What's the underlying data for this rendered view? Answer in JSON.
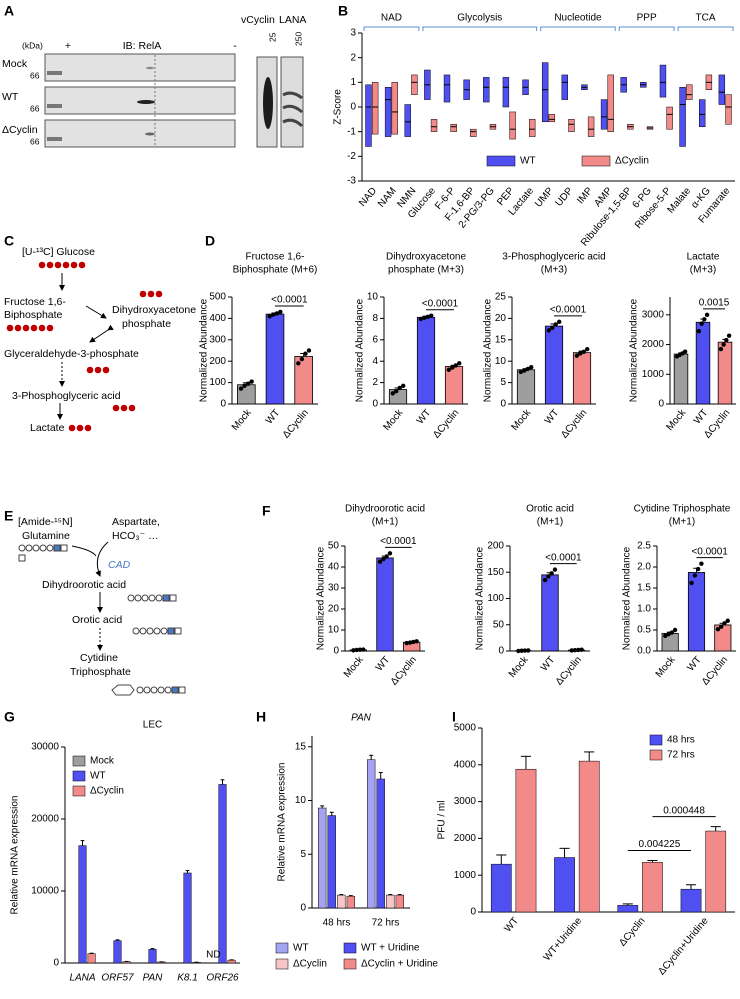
{
  "panel_labels": [
    "A",
    "B",
    "C",
    "D",
    "E",
    "F",
    "G",
    "H",
    "I"
  ],
  "blot": {
    "kda": "(kDa)",
    "plus": "+",
    "antibody": "IB: RelA",
    "minus": "-",
    "rows": [
      "Mock",
      "WT",
      "ΔCyclin"
    ],
    "marker": "66",
    "columns": [
      "vCyclin",
      "LANA"
    ],
    "column_markers": [
      "25",
      "250"
    ]
  },
  "diagram_c": {
    "start": "[U-¹³C] Glucose",
    "fbp": [
      "Fructose 1,6-",
      "Biphosphate"
    ],
    "dhap": [
      "Dihydroxyacetone",
      "phosphate"
    ],
    "g3p": "Glyceraldehyde-3-phosphate",
    "pga": "3-Phosphoglyceric acid",
    "lactate": "Lactate"
  },
  "diagram_e": {
    "start": [
      "[Amide-¹⁵N]",
      "Glutamine"
    ],
    "cosubstrates": [
      "Aspartate,",
      "HCO₃⁻ …"
    ],
    "enzyme": "CAD",
    "dho": "Dihydroorotic acid",
    "orotic": "Orotic acid",
    "ctp": [
      "Cytidine",
      "Triphosphate"
    ]
  },
  "chart_data": [
    {
      "type": "box",
      "ylabel": "Z-Score",
      "groups": [
        {
          "name": "NAD",
          "span": [
            0,
            2
          ]
        },
        {
          "name": "Glycolysis",
          "span": [
            3,
            8
          ]
        },
        {
          "name": "Nucleotide",
          "span": [
            9,
            12
          ]
        },
        {
          "name": "PPP",
          "span": [
            13,
            15
          ]
        },
        {
          "name": "TCA",
          "span": [
            16,
            18
          ]
        }
      ],
      "categories": [
        "NAD",
        "NAM",
        "NMN",
        "Glucose",
        "F-6-P",
        "F-1,6-BP",
        "2-PG/3-PG",
        "PEP",
        "Lactate",
        "UMP",
        "UDP",
        "IMP",
        "AMP",
        "Ribulose-1,5-BP",
        "6-PG",
        "Ribose-5-P",
        "Malate",
        "α-KG",
        "Fumarate"
      ],
      "series": [
        {
          "name": "WT",
          "color": "#5050f2",
          "min": [
            -1.6,
            -1.2,
            -1.2,
            0.3,
            0.2,
            0.3,
            0.2,
            0.0,
            0.5,
            -0.6,
            0.3,
            0.7,
            -0.9,
            0.6,
            0.8,
            0.4,
            -1.6,
            -0.8,
            0.1
          ],
          "median": [
            0.0,
            0.3,
            -0.6,
            0.9,
            0.9,
            0.7,
            0.8,
            0.8,
            0.8,
            0.7,
            1.0,
            0.8,
            -0.4,
            0.9,
            0.9,
            1.0,
            0.1,
            -0.3,
            0.6
          ],
          "max": [
            0.9,
            0.8,
            0.1,
            1.5,
            1.3,
            1.1,
            1.2,
            1.2,
            1.1,
            1.8,
            1.3,
            0.9,
            0.3,
            1.2,
            1.0,
            1.7,
            0.8,
            0.3,
            1.3
          ]
        },
        {
          "name": "ΔCyclin",
          "color": "#f38a8a",
          "min": [
            -1.1,
            -1.1,
            0.5,
            -1.0,
            -1.0,
            -1.2,
            -0.9,
            -1.3,
            -1.2,
            -0.6,
            -1.0,
            -1.2,
            -1.0,
            -0.9,
            -0.9,
            -0.9,
            0.3,
            0.7,
            -0.7
          ],
          "median": [
            0.0,
            -0.2,
            1.0,
            -0.8,
            -0.8,
            -1.0,
            -0.8,
            -0.9,
            -0.9,
            -0.5,
            -0.7,
            -0.9,
            -0.5,
            -0.8,
            -0.85,
            -0.3,
            0.5,
            1.0,
            0.0
          ],
          "max": [
            1.0,
            1.0,
            1.3,
            -0.5,
            -0.7,
            -0.9,
            -0.7,
            -0.2,
            -0.5,
            -0.3,
            -0.5,
            -0.4,
            1.3,
            -0.7,
            -0.8,
            0.0,
            0.9,
            1.3,
            0.5
          ]
        }
      ],
      "ylim": [
        -3,
        3
      ],
      "yticks": [
        -3,
        -2,
        -1,
        0,
        1,
        2,
        3
      ],
      "legend": "bottom"
    },
    {
      "type": "bar",
      "title": [
        "Fructose 1,6-",
        "Biphosphate (M+6)"
      ],
      "ylabel": "Normalized Abundance",
      "categories": [
        "Mock",
        "WT",
        "ΔCyclin"
      ],
      "colors": [
        "#9e9e9e",
        "#5050f2",
        "#f38a8a"
      ],
      "values": [
        90,
        420,
        222
      ],
      "errors": [
        9,
        5,
        14
      ],
      "points": [
        [
          72,
          85,
          95,
          105
        ],
        [
          410,
          418,
          423,
          430
        ],
        [
          190,
          210,
          235,
          250
        ]
      ],
      "ylim": [
        0,
        500
      ],
      "yticks": [
        0,
        100,
        200,
        300,
        400,
        500
      ],
      "annotations": [
        {
          "text": "<0.0001",
          "from": 1,
          "to": 2
        }
      ]
    },
    {
      "type": "bar",
      "title": [
        "Dihydroxyacetone",
        "phosphate (M+3)"
      ],
      "ylabel": "Normalized Abundance",
      "categories": [
        "Mock",
        "WT",
        "ΔCyclin"
      ],
      "colors": [
        "#9e9e9e",
        "#5050f2",
        "#f38a8a"
      ],
      "values": [
        1.35,
        8.1,
        3.5
      ],
      "errors": [
        0.15,
        0.1,
        0.12
      ],
      "points": [
        [
          1.0,
          1.2,
          1.5,
          1.7
        ],
        [
          7.95,
          8.05,
          8.15,
          8.25
        ],
        [
          3.2,
          3.4,
          3.6,
          3.8
        ]
      ],
      "ylim": [
        0,
        10
      ],
      "yticks": [
        0,
        2,
        4,
        6,
        8,
        10
      ],
      "annotations": [
        {
          "text": "<0.0001",
          "from": 1,
          "to": 2
        }
      ]
    },
    {
      "type": "bar",
      "title": [
        "3-Phosphoglyceric acid",
        "(M+3)"
      ],
      "ylabel": "Normalized Abundance",
      "categories": [
        "Mock",
        "WT",
        "ΔCyclin"
      ],
      "colors": [
        "#9e9e9e",
        "#5050f2",
        "#f38a8a"
      ],
      "values": [
        8.0,
        18.2,
        12.0
      ],
      "errors": [
        0.25,
        0.5,
        0.35
      ],
      "points": [
        [
          7.5,
          7.8,
          8.2,
          8.6
        ],
        [
          17.2,
          17.8,
          18.6,
          19.2
        ],
        [
          11.3,
          11.8,
          12.2,
          12.8
        ]
      ],
      "ylim": [
        0,
        25
      ],
      "yticks": [
        0,
        5,
        10,
        15,
        20,
        25
      ],
      "annotations": [
        {
          "text": "<0.0001",
          "from": 1,
          "to": 2
        }
      ]
    },
    {
      "type": "bar",
      "title": [
        "Lactate",
        "(M+3)"
      ],
      "ylabel": "Normalized Abundance",
      "categories": [
        "Mock",
        "WT",
        "ΔCyclin"
      ],
      "colors": [
        "#9e9e9e",
        "#5050f2",
        "#f38a8a"
      ],
      "values": [
        1680,
        2750,
        2080
      ],
      "errors": [
        40,
        110,
        95
      ],
      "points": [
        [
          1600,
          1650,
          1700,
          1760
        ],
        [
          2450,
          2700,
          2850,
          3000
        ],
        [
          1850,
          2000,
          2150,
          2300
        ]
      ],
      "ylim": [
        0,
        3600
      ],
      "yticks": [
        0,
        1000,
        2000,
        3000
      ],
      "annotations": [
        {
          "text": "0.0015",
          "from": 1,
          "to": 2
        }
      ]
    },
    {
      "type": "bar",
      "title": [
        "Dihydroorotic acid",
        "(M+1)"
      ],
      "ylabel": "Normalized Abundance",
      "categories": [
        "Mock",
        "WT",
        "ΔCyclin"
      ],
      "colors": [
        "#9e9e9e",
        "#5050f2",
        "#f38a8a"
      ],
      "values": [
        0.5,
        44.3,
        4.2
      ],
      "errors": [
        0.1,
        0.9,
        0.2
      ],
      "points": [
        [
          0.3,
          0.5,
          0.6,
          0.7
        ],
        [
          42.5,
          43.8,
          45,
          46.5
        ],
        [
          3.8,
          4.0,
          4.3,
          4.6
        ]
      ],
      "ylim": [
        0,
        50
      ],
      "yticks": [
        0,
        10,
        20,
        30,
        40,
        50
      ],
      "annotations": [
        {
          "text": "<0.0001",
          "from": 1,
          "to": 2
        }
      ]
    },
    {
      "type": "bar",
      "title": [
        "Orotic acid",
        "(M+1)"
      ],
      "ylabel": "Normalized Abundance",
      "categories": [
        "Mock",
        "WT",
        "ΔCyclin"
      ],
      "colors": [
        "#9e9e9e",
        "#5050f2",
        "#f38a8a"
      ],
      "values": [
        0.5,
        145,
        1.5
      ],
      "errors": [
        0.2,
        4,
        0.3
      ],
      "points": [
        [
          0,
          0.5,
          0.8,
          1
        ],
        [
          135,
          142,
          148,
          155
        ],
        [
          1,
          1.5,
          2,
          2.5
        ]
      ],
      "ylim": [
        0,
        200
      ],
      "yticks": [
        0,
        50,
        100,
        150,
        200
      ],
      "annotations": [
        {
          "text": "<0.0001",
          "from": 1,
          "to": 2
        }
      ]
    },
    {
      "type": "bar",
      "title": [
        "Cytidine Triphosphate",
        "(M+1)"
      ],
      "ylabel": "Normalized Abundance",
      "categories": [
        "Mock",
        "WT",
        "ΔCyclin"
      ],
      "colors": [
        "#9e9e9e",
        "#5050f2",
        "#f38a8a"
      ],
      "values": [
        0.42,
        1.87,
        0.62
      ],
      "errors": [
        0.03,
        0.1,
        0.04
      ],
      "points": [
        [
          0.36,
          0.4,
          0.44,
          0.5
        ],
        [
          1.62,
          1.8,
          1.95,
          2.08
        ],
        [
          0.52,
          0.58,
          0.66,
          0.72
        ]
      ],
      "ylim": [
        0,
        2.5
      ],
      "yticks": [
        {
          "value": 0,
          "label": "0.0"
        },
        {
          "value": 0.5,
          "label": "0.5"
        },
        {
          "value": 1,
          "label": "1.0"
        },
        {
          "value": 1.5,
          "label": "1.5"
        },
        {
          "value": 2,
          "label": "2.0"
        },
        {
          "value": 2.5,
          "label": "2.5"
        }
      ],
      "annotations": [
        {
          "text": "<0.0001",
          "from": 1,
          "to": 2
        }
      ]
    },
    {
      "type": "grouped-bar",
      "title": [
        "LEC"
      ],
      "ylabel": "Relative mRNA expression",
      "category_style": "italic",
      "categories": [
        "LANA",
        "ORF57",
        "PAN",
        "K8.1",
        "ORF26"
      ],
      "series": [
        {
          "name": "Mock",
          "color": "#9e9e9e",
          "values": [
            1,
            1,
            1,
            1,
            null
          ],
          "errors": [
            0,
            0,
            0,
            0,
            null
          ]
        },
        {
          "name": "WT",
          "color": "#5050f2",
          "values": [
            16300,
            3100,
            1900,
            12500,
            24800
          ],
          "errors": [
            700,
            120,
            100,
            350,
            650
          ]
        },
        {
          "name": "ΔCyclin",
          "color": "#f38a8a",
          "values": [
            1300,
            200,
            150,
            100,
            400
          ],
          "errors": [
            60,
            20,
            15,
            15,
            40
          ]
        }
      ],
      "ylim": [
        0,
        30000
      ],
      "yticks": [
        0,
        10000,
        20000,
        30000
      ],
      "legend": "upper left",
      "annotations": [
        {
          "text": "ND",
          "category": 4,
          "series": 0
        }
      ]
    },
    {
      "type": "grouped-bar",
      "title": [
        "PAN"
      ],
      "title_style": "italic",
      "ylabel": "Relative mRNA expression",
      "categories": [
        "48 hrs",
        "72 hrs"
      ],
      "series": [
        {
          "name": "WT",
          "color": "#a4a4f2",
          "values": [
            9.3,
            13.8
          ],
          "errors": [
            0.2,
            0.4
          ]
        },
        {
          "name": "WT + Uridine",
          "color": "#5050f2",
          "values": [
            8.6,
            12.0
          ],
          "errors": [
            0.3,
            0.6
          ]
        },
        {
          "name": "ΔCyclin",
          "color": "#f8c6c6",
          "values": [
            1.2,
            1.2
          ],
          "errors": [
            0.05,
            0.05
          ]
        },
        {
          "name": "ΔCyclin + Uridine",
          "color": "#f38a8a",
          "values": [
            1.1,
            1.2
          ],
          "errors": [
            0.05,
            0.05
          ]
        }
      ],
      "ylim": [
        0,
        16
      ],
      "yticks": [
        0,
        5,
        10,
        15
      ],
      "legend": "below"
    },
    {
      "type": "grouped-bar",
      "ylabel": "PFU / ml",
      "categories": [
        "WT",
        "WT+Uridine",
        "ΔCyclin",
        "ΔCyclin+Uridine"
      ],
      "series": [
        {
          "name": "48 hrs",
          "color": "#5050f2",
          "values": [
            1300,
            1480,
            180,
            620
          ],
          "errors": [
            250,
            250,
            40,
            120
          ]
        },
        {
          "name": "72 hrs",
          "color": "#f38a8a",
          "values": [
            3880,
            4100,
            1350,
            2200
          ],
          "errors": [
            350,
            250,
            50,
            120
          ]
        }
      ],
      "ylim": [
        0,
        5000
      ],
      "yticks": [
        0,
        1000,
        2000,
        3000,
        4000,
        5000
      ],
      "legend": "upper right",
      "annotations": [
        {
          "text": "0.004225",
          "from": [
            2,
            0
          ],
          "to": [
            3,
            0
          ]
        },
        {
          "text": "0.000448",
          "from": [
            2,
            1
          ],
          "to": [
            3,
            1
          ]
        }
      ]
    }
  ]
}
